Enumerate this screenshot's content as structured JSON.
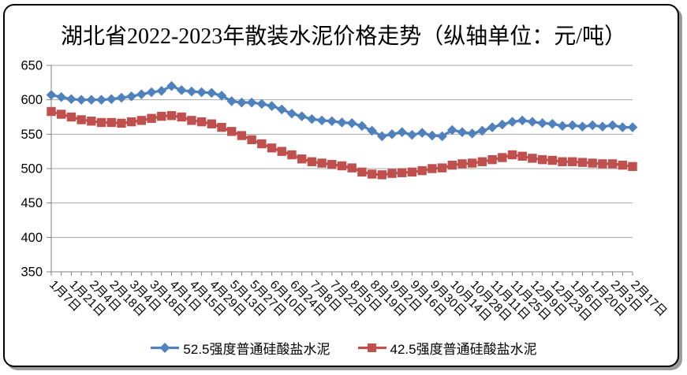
{
  "title": "湖北省2022-2023年散装水泥价格走势（纵轴单位：元/吨）",
  "chart_data": {
    "type": "line",
    "title": "湖北省2022-2023年散装水泥价格走势（纵轴单位：元/吨）",
    "ylabel_unit": "元/吨",
    "ylim": [
      350,
      650
    ],
    "ytick_step": 50,
    "grid": "horizontal",
    "legend_position": "bottom",
    "label_interval": 2,
    "x_labels": [
      "1月7日",
      "1月21日",
      "2月4日",
      "2月18日",
      "3月4日",
      "3月18日",
      "4月1日",
      "4月15日",
      "4月29日",
      "5月13日",
      "5月27日",
      "6月10日",
      "6月24日",
      "7月8日",
      "7月22日",
      "8月5日",
      "8月19日",
      "9月2日",
      "9月16日",
      "9月30日",
      "10月14日",
      "10月28日",
      "11月11日",
      "11月25日",
      "12月9日",
      "12月23日",
      "1月6日",
      "1月20日",
      "2月3日",
      "2月17日"
    ],
    "colors": {
      "grid": "#A6A6A6",
      "axis": "#808080",
      "text": "#000000"
    },
    "series": [
      {
        "name": "52.5强度普通硅酸盐水泥",
        "marker": "diamond",
        "color": "#4F81BD",
        "values": [
          607,
          604,
          601,
          600,
          600,
          600,
          601,
          603,
          605,
          608,
          611,
          613,
          620,
          614,
          612,
          611,
          610,
          606,
          598,
          596,
          596,
          594,
          591,
          586,
          580,
          576,
          572,
          570,
          569,
          567,
          566,
          562,
          555,
          547,
          550,
          553,
          549,
          552,
          548,
          547,
          556,
          553,
          551,
          555,
          560,
          564,
          568,
          570,
          568,
          566,
          565,
          562,
          563,
          561,
          563,
          561,
          563,
          560,
          560
        ]
      },
      {
        "name": "42.5强度普通硅酸盐水泥",
        "marker": "square",
        "color": "#C0504D",
        "values": [
          583,
          579,
          575,
          571,
          569,
          567,
          567,
          566,
          568,
          570,
          573,
          576,
          577,
          575,
          570,
          568,
          565,
          560,
          554,
          548,
          542,
          536,
          530,
          525,
          520,
          514,
          510,
          508,
          506,
          504,
          501,
          495,
          492,
          491,
          493,
          494,
          495,
          497,
          500,
          501,
          505,
          507,
          508,
          510,
          513,
          516,
          520,
          518,
          515,
          513,
          512,
          510,
          510,
          509,
          508,
          507,
          507,
          505,
          503
        ]
      }
    ]
  }
}
